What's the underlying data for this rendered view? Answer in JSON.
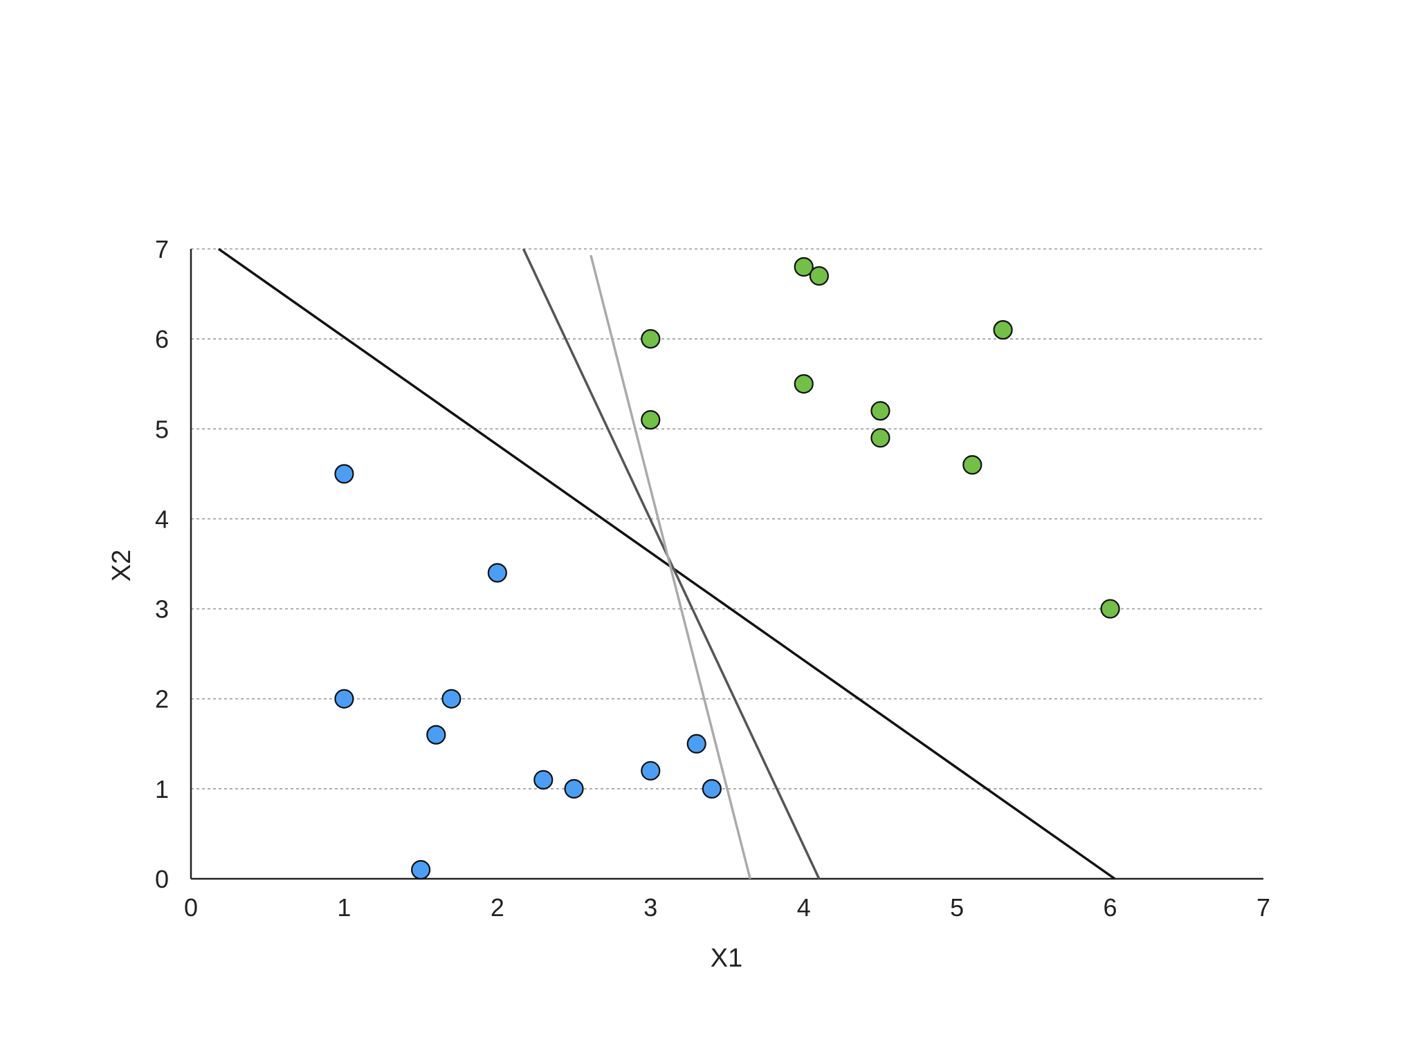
{
  "chart_data": {
    "type": "scatter",
    "xlabel": "X1",
    "ylabel": "X2",
    "xlim": [
      0,
      7
    ],
    "ylim": [
      0,
      7
    ],
    "x_ticks": [
      "0",
      "1",
      "2",
      "3",
      "4",
      "5",
      "6",
      "7"
    ],
    "y_ticks": [
      "0",
      "1",
      "2",
      "3",
      "4",
      "5",
      "6",
      "7"
    ],
    "grid": "horizontal dotted",
    "legend": "none",
    "series": [
      {
        "color": "#4a9ff5",
        "points": [
          {
            "x": 1.0,
            "y": 4.5
          },
          {
            "x": 2.0,
            "y": 3.4
          },
          {
            "x": 1.0,
            "y": 2.0
          },
          {
            "x": 1.7,
            "y": 2.0
          },
          {
            "x": 1.6,
            "y": 1.6
          },
          {
            "x": 2.3,
            "y": 1.1
          },
          {
            "x": 2.5,
            "y": 1.0
          },
          {
            "x": 3.0,
            "y": 1.2
          },
          {
            "x": 3.3,
            "y": 1.5
          },
          {
            "x": 3.4,
            "y": 1.0
          },
          {
            "x": 1.5,
            "y": 0.1
          }
        ]
      },
      {
        "color": "#72c046",
        "points": [
          {
            "x": 4.0,
            "y": 6.8
          },
          {
            "x": 4.1,
            "y": 6.7
          },
          {
            "x": 3.0,
            "y": 6.0
          },
          {
            "x": 5.3,
            "y": 6.1
          },
          {
            "x": 4.0,
            "y": 5.5
          },
          {
            "x": 3.0,
            "y": 5.1
          },
          {
            "x": 4.5,
            "y": 5.2
          },
          {
            "x": 4.5,
            "y": 4.9
          },
          {
            "x": 5.1,
            "y": 4.6
          },
          {
            "x": 6.0,
            "y": 3.0
          }
        ]
      }
    ],
    "lines": [
      {
        "color": "#111111",
        "x1": 0.18,
        "y1": 7.0,
        "x2": 6.03,
        "y2": 0.0
      },
      {
        "color": "#555555",
        "x1": 2.17,
        "y1": 7.0,
        "x2": 4.1,
        "y2": 0.0
      },
      {
        "color": "#aaaaaa",
        "x1": 2.61,
        "y1": 6.93,
        "x2": 3.65,
        "y2": 0.0
      }
    ]
  }
}
